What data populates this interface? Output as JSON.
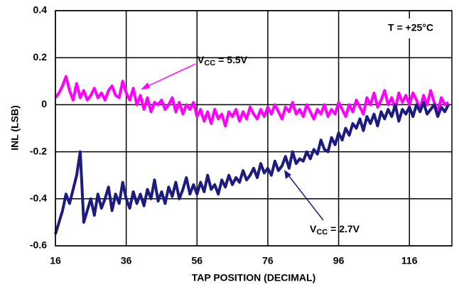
{
  "chart_data": {
    "type": "line",
    "xlabel": "TAP POSITION (DECIMAL)",
    "ylabel": "INL (LSB)",
    "xlim": [
      16,
      128
    ],
    "xticks": [
      16,
      36,
      56,
      76,
      96,
      116
    ],
    "ylim": [
      -0.6,
      0.4
    ],
    "yticks": [
      -0.6,
      -0.4,
      -0.2,
      0,
      0.2,
      0.4
    ],
    "grid": true,
    "annotations": [
      {
        "text": "T = +25°C"
      },
      {
        "main": "V",
        "subscript": "CC",
        "suffix": " = 5.5V"
      },
      {
        "main": "V",
        "subscript": "CC",
        "suffix": " = 2.7V"
      }
    ],
    "x": [
      16,
      17,
      18,
      19,
      20,
      21,
      22,
      23,
      24,
      25,
      26,
      27,
      28,
      29,
      30,
      31,
      32,
      33,
      34,
      35,
      36,
      37,
      38,
      39,
      40,
      41,
      42,
      43,
      44,
      45,
      46,
      47,
      48,
      49,
      50,
      51,
      52,
      53,
      54,
      55,
      56,
      57,
      58,
      59,
      60,
      61,
      62,
      63,
      64,
      65,
      66,
      67,
      68,
      69,
      70,
      71,
      72,
      73,
      74,
      75,
      76,
      77,
      78,
      79,
      80,
      81,
      82,
      83,
      84,
      85,
      86,
      87,
      88,
      89,
      90,
      91,
      92,
      93,
      94,
      95,
      96,
      97,
      98,
      99,
      100,
      101,
      102,
      103,
      104,
      105,
      106,
      107,
      108,
      109,
      110,
      111,
      112,
      113,
      114,
      115,
      116,
      117,
      118,
      119,
      120,
      121,
      122,
      123,
      124,
      125,
      126,
      127
    ],
    "series": [
      {
        "color": "#ff00ff",
        "values": [
          0.03,
          0.05,
          0.08,
          0.12,
          0.06,
          0.02,
          0.09,
          0.03,
          0.06,
          0.02,
          0.04,
          0.07,
          0.03,
          0.05,
          0.02,
          0.06,
          0.08,
          0.04,
          0.03,
          0.1,
          0.05,
          0.02,
          0.07,
          0.0,
          0.04,
          -0.02,
          0.03,
          -0.03,
          0.01,
          0.0,
          0.02,
          -0.02,
          0.0,
          0.03,
          -0.03,
          0.01,
          -0.04,
          0.0,
          -0.02,
          0.01,
          -0.05,
          -0.02,
          -0.07,
          -0.03,
          -0.08,
          -0.02,
          -0.06,
          -0.04,
          -0.09,
          -0.03,
          -0.05,
          -0.02,
          -0.07,
          -0.03,
          -0.06,
          -0.01,
          -0.04,
          -0.06,
          -0.02,
          -0.05,
          -0.01,
          -0.04,
          0.0,
          -0.03,
          -0.06,
          -0.01,
          -0.03,
          0.01,
          -0.04,
          -0.02,
          -0.05,
          0.0,
          -0.03,
          -0.06,
          -0.02,
          -0.04,
          0.0,
          -0.05,
          -0.02,
          -0.04,
          0.01,
          -0.02,
          -0.05,
          0.0,
          -0.03,
          0.02,
          -0.01,
          -0.04,
          0.03,
          0.0,
          0.05,
          -0.01,
          0.02,
          0.06,
          0.0,
          0.03,
          -0.02,
          0.05,
          0.01,
          0.04,
          0.0,
          0.05,
          0.02,
          -0.02,
          0.04,
          0.0,
          0.06,
          0.01,
          -0.03,
          0.03,
          0.0,
          0.01
        ]
      },
      {
        "color": "#1c1c80",
        "values": [
          -0.55,
          -0.5,
          -0.45,
          -0.38,
          -0.42,
          -0.36,
          -0.3,
          -0.2,
          -0.5,
          -0.45,
          -0.4,
          -0.47,
          -0.38,
          -0.44,
          -0.4,
          -0.35,
          -0.45,
          -0.38,
          -0.42,
          -0.33,
          -0.4,
          -0.44,
          -0.37,
          -0.42,
          -0.38,
          -0.43,
          -0.36,
          -0.4,
          -0.32,
          -0.41,
          -0.37,
          -0.42,
          -0.35,
          -0.39,
          -0.33,
          -0.4,
          -0.36,
          -0.31,
          -0.38,
          -0.34,
          -0.38,
          -0.33,
          -0.37,
          -0.3,
          -0.36,
          -0.34,
          -0.38,
          -0.32,
          -0.35,
          -0.3,
          -0.34,
          -0.31,
          -0.33,
          -0.28,
          -0.32,
          -0.3,
          -0.27,
          -0.31,
          -0.25,
          -0.29,
          -0.27,
          -0.3,
          -0.24,
          -0.28,
          -0.26,
          -0.22,
          -0.27,
          -0.2,
          -0.25,
          -0.23,
          -0.24,
          -0.2,
          -0.23,
          -0.19,
          -0.21,
          -0.15,
          -0.19,
          -0.2,
          -0.14,
          -0.17,
          -0.12,
          -0.15,
          -0.1,
          -0.13,
          -0.08,
          -0.1,
          -0.06,
          -0.11,
          -0.05,
          -0.08,
          -0.04,
          -0.09,
          -0.03,
          -0.06,
          -0.02,
          -0.05,
          0.0,
          -0.07,
          -0.02,
          -0.04,
          -0.01,
          -0.05,
          0.0,
          -0.03,
          0.01,
          -0.04,
          -0.02,
          0.0,
          -0.05,
          -0.01,
          -0.03,
          0.0
        ]
      }
    ]
  }
}
